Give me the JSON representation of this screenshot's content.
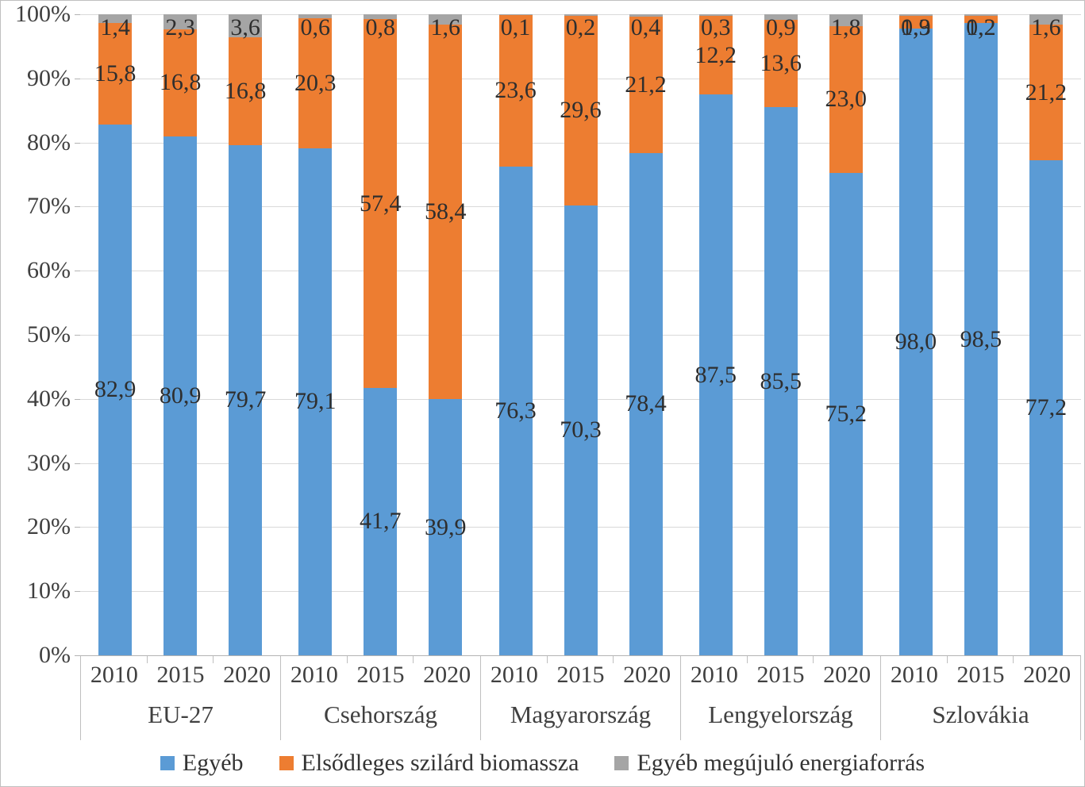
{
  "chart_data": {
    "type": "bar",
    "subtype": "stacked-100-percent",
    "title": "",
    "xlabel": "",
    "ylabel": "",
    "grid": true,
    "legend_position": "bottom",
    "ylim": [
      0,
      100
    ],
    "y_ticks": [
      "100%",
      "90%",
      "80%",
      "70%",
      "60%",
      "50%",
      "40%",
      "30%",
      "20%",
      "10%",
      "0%"
    ],
    "groups": [
      "EU-27",
      "Csehország",
      "Magyarország",
      "Lengyelország",
      "Szlovákia"
    ],
    "years": [
      "2010",
      "2015",
      "2020"
    ],
    "decimal_separator": ",",
    "series": [
      {
        "name": "Egyéb",
        "color": "#5B9BD5",
        "values": [
          [
            82.9,
            80.9,
            79.7
          ],
          [
            79.1,
            41.7,
            39.9
          ],
          [
            76.3,
            70.3,
            78.4
          ],
          [
            87.5,
            85.5,
            75.2
          ],
          [
            98.0,
            98.5,
            77.2
          ]
        ],
        "labels": [
          [
            "82,9",
            "80,9",
            "79,7"
          ],
          [
            "79,1",
            "41,7",
            "39,9"
          ],
          [
            "76,3",
            "70,3",
            "78,4"
          ],
          [
            "87,5",
            "85,5",
            "75,2"
          ],
          [
            "98,0",
            "98,5",
            "77,2"
          ]
        ]
      },
      {
        "name": "Elsődleges szilárd biomassza",
        "color": "#ED7D31",
        "values": [
          [
            15.8,
            16.8,
            16.8
          ],
          [
            20.3,
            57.4,
            58.4
          ],
          [
            23.6,
            29.6,
            21.2
          ],
          [
            12.2,
            13.6,
            23.0
          ],
          [
            1.9,
            1.2,
            21.2
          ]
        ],
        "labels": [
          [
            "15,8",
            "16,8",
            "16,8"
          ],
          [
            "20,3",
            "57,4",
            "58,4"
          ],
          [
            "23,6",
            "29,6",
            "21,2"
          ],
          [
            "12,2",
            "13,6",
            "23,0"
          ],
          [
            "1,9",
            "1,2",
            "21,2"
          ]
        ]
      },
      {
        "name": "Egyéb megújuló energiaforrás",
        "color": "#A5A5A5",
        "values": [
          [
            1.4,
            2.3,
            3.6
          ],
          [
            0.6,
            0.8,
            1.6
          ],
          [
            0.1,
            0.2,
            0.4
          ],
          [
            0.3,
            0.9,
            1.8
          ],
          [
            0.3,
            0.2,
            1.6
          ]
        ],
        "labels": [
          [
            "1,4",
            "2,3",
            "3,6"
          ],
          [
            "0,6",
            "0,8",
            "1,6"
          ],
          [
            "0,1",
            "0,2",
            "0,4"
          ],
          [
            "0,3",
            "0,9",
            "1,8"
          ],
          [
            "0,3",
            "0,2",
            "1,6"
          ]
        ]
      }
    ],
    "colors": {
      "gridline": "#d9d9d9",
      "axis_line": "#b3b3b3",
      "separator": "#bfbfbf",
      "label_text": "#2e2e2e",
      "axis_text": "#404040"
    }
  }
}
